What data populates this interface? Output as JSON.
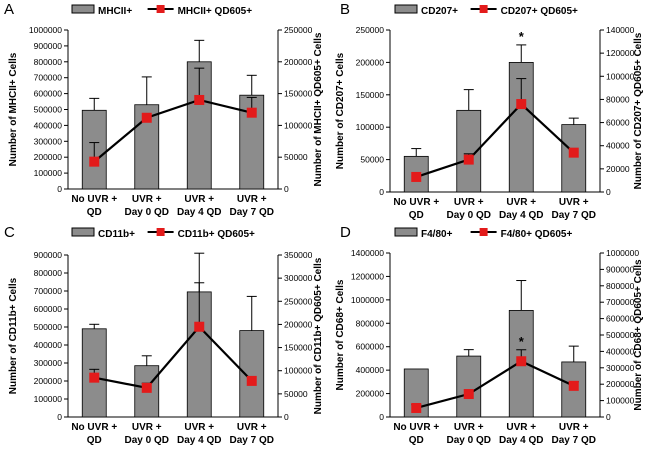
{
  "chart_data": [
    {
      "type": "bar",
      "panel_label": "A",
      "categories": [
        [
          "No UVR +",
          "QD"
        ],
        [
          "UVR +",
          "Day 0 QD"
        ],
        [
          "UVR +",
          "Day 4 QD"
        ],
        [
          "UVR +",
          "Day 7 QD"
        ]
      ],
      "ylabel": "Number of MHCII+ Cells",
      "y2label": "Number of MHCII+ QD605+ Cells",
      "ylim": [
        0,
        1000000
      ],
      "ystep": 100000,
      "y2lim": [
        0,
        250000
      ],
      "y2step": 50000,
      "legend": [
        "MHCII+",
        "MHCII+ QD605+"
      ],
      "bar_series": {
        "name": "MHCII+",
        "values": [
          495000,
          530000,
          800000,
          590000
        ],
        "errors": [
          75000,
          175000,
          135000,
          125000
        ]
      },
      "line_series": {
        "name": "MHCII+ QD605+",
        "values": [
          43000,
          112000,
          140000,
          120000
        ],
        "errors": [
          30000,
          0,
          50000,
          24000
        ]
      },
      "annotations": []
    },
    {
      "type": "bar",
      "panel_label": "B",
      "categories": [
        [
          "No UVR +",
          "QD"
        ],
        [
          "UVR +",
          "Day 0 QD"
        ],
        [
          "UVR +",
          "Day 4 QD"
        ],
        [
          "UVR +",
          "Day 7 QD"
        ]
      ],
      "ylabel": "Number of CD207+ Cells",
      "y2label": "Number of CD207+ QD605+ Cells",
      "ylim": [
        0,
        250000
      ],
      "ystep": 50000,
      "y2lim": [
        0,
        140000
      ],
      "y2step": 20000,
      "legend": [
        "CD207+",
        "CD207+ QD605+"
      ],
      "bar_series": {
        "name": "CD207+",
        "values": [
          55000,
          126000,
          200000,
          104000
        ],
        "errors": [
          12000,
          32000,
          27000,
          10000
        ]
      },
      "line_series": {
        "name": "CD207+ QD605+",
        "values": [
          13000,
          28000,
          76000,
          34000
        ],
        "errors": [
          0,
          5000,
          22000,
          0
        ]
      },
      "annotations": [
        {
          "category_index": 2,
          "text": "*"
        }
      ]
    },
    {
      "type": "bar",
      "panel_label": "C",
      "categories": [
        [
          "No UVR +",
          "QD"
        ],
        [
          "UVR +",
          "Day 0 QD"
        ],
        [
          "UVR +",
          "Day 4 QD"
        ],
        [
          "UVR +",
          "Day 7 QD"
        ]
      ],
      "ylabel": "Number of CD11b+ Cells",
      "y2label": "Number of CD11b+ QD605+ Cells",
      "ylim": [
        0,
        900000
      ],
      "ystep": 100000,
      "y2lim": [
        0,
        350000
      ],
      "y2step": 50000,
      "legend": [
        "CD11b+",
        "CD11b+ QD605+"
      ],
      "bar_series": {
        "name": "CD11b+",
        "values": [
          490000,
          285000,
          695000,
          480000
        ],
        "errors": [
          25000,
          55000,
          215000,
          190000
        ]
      },
      "line_series": {
        "name": "CD11b+ QD605+",
        "values": [
          85000,
          63000,
          195000,
          78000
        ],
        "errors": [
          18000,
          10000,
          95000,
          0
        ]
      },
      "annotations": []
    },
    {
      "type": "bar",
      "panel_label": "D",
      "categories": [
        [
          "No UVR +",
          "QD"
        ],
        [
          "UVR +",
          "Day 0 QD"
        ],
        [
          "UVR +",
          "Day 4 QD"
        ],
        [
          "UVR +",
          "Day 7 QD"
        ]
      ],
      "ylabel": "Number of CD68+ Cells",
      "y2label": "Number of CD68+ QD605+ Cells",
      "ylim": [
        0,
        1400000
      ],
      "ystep": 200000,
      "y2lim": [
        0,
        1000000
      ],
      "y2step": 100000,
      "legend": [
        "F4/80+",
        "F4/80+ QD605+"
      ],
      "bar_series": {
        "name": "F4/80+",
        "values": [
          410000,
          520000,
          910000,
          470000
        ],
        "errors": [
          0,
          55000,
          255000,
          135000
        ]
      },
      "line_series": {
        "name": "F4/80+ QD605+",
        "values": [
          55000,
          140000,
          340000,
          190000
        ],
        "errors": [
          20000,
          0,
          70000,
          25000
        ]
      },
      "annotations": [
        {
          "category_index": 2,
          "text": "*"
        }
      ]
    }
  ]
}
